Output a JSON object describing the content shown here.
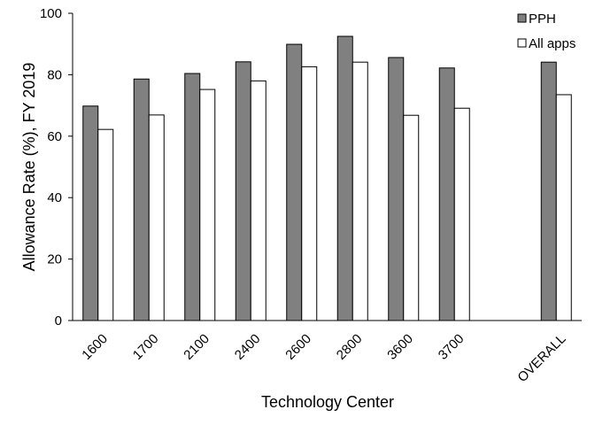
{
  "chart_data": {
    "type": "bar",
    "title": "",
    "xlabel": "Technology Center",
    "ylabel": "Allowance Rate (%), FY 2019",
    "ylim": [
      0,
      100
    ],
    "yticks": [
      0,
      20,
      40,
      60,
      80,
      100
    ],
    "categories": [
      "1600",
      "1700",
      "2100",
      "2400",
      "2600",
      "2800",
      "3600",
      "3700",
      "",
      "OVERALL"
    ],
    "series": [
      {
        "name": "PPH",
        "color": "#808080",
        "values": [
          69.8,
          78.6,
          80.4,
          84.2,
          89.9,
          92.5,
          85.6,
          82.2,
          null,
          84.1
        ]
      },
      {
        "name": "All apps",
        "color": "#ffffff",
        "values": [
          62.2,
          66.9,
          75.2,
          78.0,
          82.6,
          84.1,
          66.8,
          69.1,
          null,
          73.5
        ]
      }
    ],
    "legend_position": "top-right",
    "grid": false
  }
}
